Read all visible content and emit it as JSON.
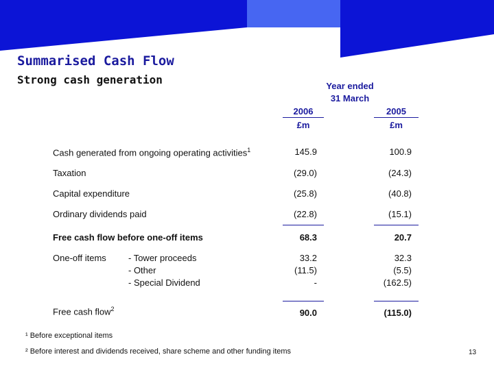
{
  "title": "Summarised Cash Flow",
  "subtitle": "Strong cash generation",
  "header": {
    "year_ended": "Year ended",
    "date": "31 March",
    "col_2006": "2006",
    "col_2005": "2005",
    "unit_2006": "£m",
    "unit_2005": "£m"
  },
  "rows": {
    "cash_generated": {
      "label": "Cash generated from ongoing operating activities",
      "sup": "1",
      "v2006": "145.9",
      "v2005": "100.9"
    },
    "taxation": {
      "label": "Taxation",
      "v2006": "(29.0)",
      "v2005": "(24.3)"
    },
    "capex": {
      "label": "Capital expenditure",
      "v2006": "(25.8)",
      "v2005": "(40.8)"
    },
    "dividends": {
      "label": "Ordinary dividends paid",
      "v2006": "(22.8)",
      "v2005": "(15.1)"
    },
    "fcf_before": {
      "label": "Free cash flow before one-off items",
      "v2006": "68.3",
      "v2005": "20.7"
    },
    "one_off": {
      "label": "One-off items",
      "items": [
        {
          "label": "- Tower proceeds",
          "v2006": "33.2",
          "v2005": "32.3"
        },
        {
          "label": "- Other",
          "v2006": "(11.5)",
          "v2005": "(5.5)"
        },
        {
          "label": "- Special Dividend",
          "v2006": "-",
          "v2005": "(162.5)"
        }
      ]
    },
    "fcf": {
      "label": "Free cash flow",
      "sup": "2",
      "v2006": "90.0",
      "v2005": "(115.0)"
    }
  },
  "footnotes": {
    "note1": "¹ Before exceptional items",
    "note2": "² Before interest and dividends received, share scheme and other funding items"
  },
  "page_number": "13",
  "colors": {
    "banner_dark": "#0c14d6",
    "banner_light": "#4766f2",
    "accent": "#1a1a9e"
  }
}
